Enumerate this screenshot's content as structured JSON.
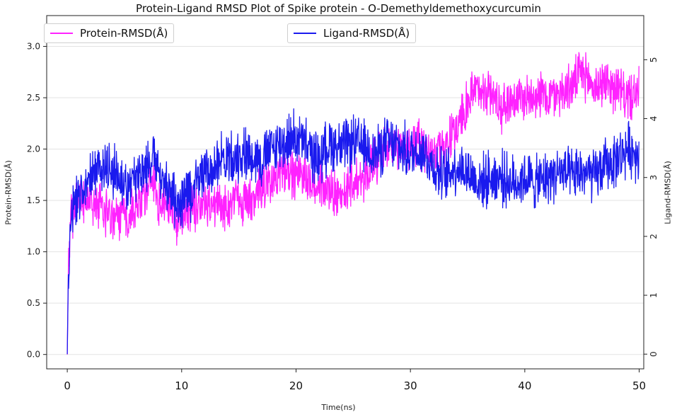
{
  "chart_data": {
    "type": "line",
    "title": "Protein-Ligand RMSD Plot of Spike protein - O-Demethyldemethoxycurcumin",
    "xlabel": "Time(ns)",
    "ylabel": "Protein-RMSD(Å)",
    "y2label": "Ligand-RMSD(Å)",
    "xlim": [
      -1.8,
      50.4
    ],
    "ylim": [
      -0.14,
      3.3
    ],
    "y2lim": [
      -0.25,
      5.75
    ],
    "xticks": [
      0,
      10,
      20,
      30,
      40,
      50
    ],
    "yticks": [
      0.0,
      0.5,
      1.0,
      1.5,
      2.0,
      2.5,
      3.0
    ],
    "y2ticks": [
      0,
      1,
      2,
      3,
      4,
      5
    ],
    "grid": "horizontal",
    "legend": [
      "upper-left",
      "upper-center"
    ],
    "series": [
      {
        "name": "Protein-RMSD(Å)",
        "axis": "left",
        "color": "#ff22ff",
        "x": [
          0,
          0.1,
          0.3,
          0.6,
          1,
          1.5,
          2,
          3,
          4,
          5,
          6,
          7,
          7.5,
          8,
          9,
          9.5,
          10,
          11,
          12,
          13,
          14,
          15,
          16,
          17,
          18,
          19,
          20,
          21,
          22,
          23,
          24,
          25,
          26,
          27,
          28,
          29,
          30,
          31,
          32,
          33,
          34,
          35,
          36,
          37,
          38,
          39,
          40,
          41,
          42,
          43,
          44,
          45,
          46,
          47,
          48,
          49,
          50
        ],
        "y": [
          0.0,
          0.9,
          1.3,
          1.45,
          1.5,
          1.45,
          1.5,
          1.45,
          1.3,
          1.35,
          1.45,
          1.6,
          1.7,
          1.45,
          1.5,
          1.3,
          1.35,
          1.4,
          1.5,
          1.45,
          1.45,
          1.5,
          1.5,
          1.6,
          1.7,
          1.8,
          1.75,
          1.7,
          1.65,
          1.6,
          1.55,
          1.7,
          1.75,
          1.9,
          2.0,
          2.05,
          2.0,
          2.05,
          2.0,
          2.0,
          2.2,
          2.45,
          2.6,
          2.55,
          2.4,
          2.5,
          2.5,
          2.55,
          2.5,
          2.55,
          2.6,
          2.75,
          2.6,
          2.65,
          2.6,
          2.5,
          2.55
        ]
      },
      {
        "name": "Ligand-RMSD(Å)",
        "axis": "right",
        "color": "#1a1aee",
        "x": [
          0,
          0.1,
          0.3,
          0.6,
          1,
          1.5,
          2,
          3,
          4,
          5,
          6,
          7,
          7.5,
          8,
          9,
          9.5,
          10,
          11,
          12,
          13,
          14,
          15,
          16,
          17,
          18,
          19,
          20,
          21,
          22,
          23,
          24,
          25,
          26,
          27,
          28,
          29,
          30,
          31,
          32,
          33,
          34,
          35,
          36,
          37,
          38,
          39,
          40,
          41,
          42,
          43,
          44,
          45,
          46,
          47,
          48,
          49,
          50
        ],
        "y": [
          0.0,
          1.5,
          2.1,
          2.5,
          2.7,
          2.9,
          3.0,
          3.2,
          3.1,
          2.9,
          3.0,
          3.2,
          3.5,
          3.0,
          2.8,
          2.5,
          2.6,
          2.8,
          3.1,
          3.2,
          3.3,
          3.4,
          3.4,
          3.3,
          3.5,
          3.6,
          3.7,
          3.5,
          3.3,
          3.6,
          3.5,
          3.6,
          3.5,
          3.4,
          3.6,
          3.5,
          3.4,
          3.5,
          3.2,
          3.0,
          3.2,
          3.1,
          2.9,
          3.0,
          3.0,
          2.9,
          3.0,
          2.9,
          3.0,
          3.1,
          3.0,
          3.1,
          3.0,
          3.2,
          3.3,
          3.5,
          3.4
        ]
      }
    ]
  }
}
